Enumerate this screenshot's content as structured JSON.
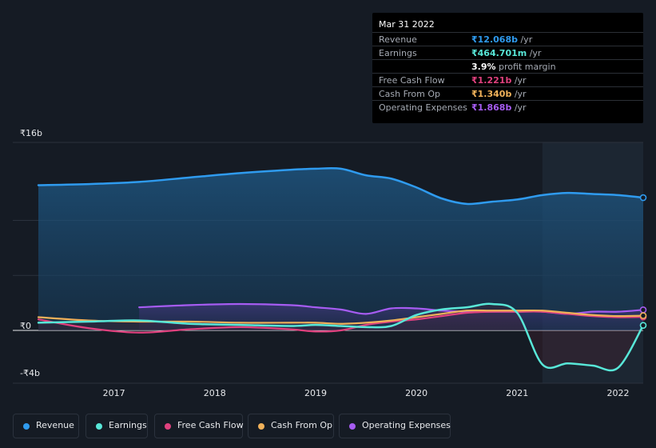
{
  "tooltip": {
    "date": "Mar 31 2022",
    "rows": [
      {
        "label": "Revenue",
        "value": "₹12.068b",
        "unit": " /yr",
        "color": "#2f9bef"
      },
      {
        "label": "Earnings",
        "value": "₹464.701m",
        "unit": " /yr",
        "color": "#58e7d8"
      },
      {
        "label": "",
        "value": "3.9%",
        "unit": " profit margin",
        "color": "#ffffff"
      },
      {
        "label": "Free Cash Flow",
        "value": "₹1.221b",
        "unit": " /yr",
        "color": "#e0417e"
      },
      {
        "label": "Cash From Op",
        "value": "₹1.340b",
        "unit": " /yr",
        "color": "#f0b15a"
      },
      {
        "label": "Operating Expenses",
        "value": "₹1.868b",
        "unit": " /yr",
        "color": "#a65cf2"
      }
    ]
  },
  "legend": [
    {
      "label": "Revenue",
      "color": "#2f9bef"
    },
    {
      "label": "Earnings",
      "color": "#58e7d8"
    },
    {
      "label": "Free Cash Flow",
      "color": "#e0417e"
    },
    {
      "label": "Cash From Op",
      "color": "#f0b15a"
    },
    {
      "label": "Operating Expenses",
      "color": "#a65cf2"
    }
  ],
  "chart_data": {
    "type": "area",
    "y_unit_labels": {
      "top": "₹16b",
      "zero": "₹0",
      "bottom": "-₹4b"
    },
    "ylim": [
      -4,
      16
    ],
    "xlim": [
      2016.25,
      2022.25
    ],
    "x_ticks": [
      "2017",
      "2018",
      "2019",
      "2020",
      "2021",
      "2022"
    ],
    "x_tick_values": [
      2017,
      2018,
      2019,
      2020,
      2021,
      2022
    ],
    "forecast_start": 2021.25,
    "series": [
      {
        "name": "Revenue",
        "color": "#2f9bef",
        "fill": true,
        "x": [
          2016.25,
          2016.75,
          2017.25,
          2017.75,
          2018.25,
          2018.75,
          2019.0,
          2019.25,
          2019.5,
          2019.75,
          2020.0,
          2020.25,
          2020.5,
          2020.75,
          2021.0,
          2021.25,
          2021.5,
          2021.75,
          2022.0,
          2022.25
        ],
        "y": [
          13.2,
          13.3,
          13.5,
          13.9,
          14.3,
          14.6,
          14.7,
          14.7,
          14.1,
          13.8,
          13.0,
          12.0,
          11.5,
          11.7,
          11.9,
          12.3,
          12.5,
          12.4,
          12.3,
          12.07
        ]
      },
      {
        "name": "Earnings",
        "color": "#58e7d8",
        "fill": false,
        "x": [
          2016.25,
          2016.75,
          2017.25,
          2017.75,
          2018.25,
          2018.75,
          2019.0,
          2019.25,
          2019.5,
          2019.75,
          2020.0,
          2020.25,
          2020.5,
          2020.75,
          2021.0,
          2021.25,
          2021.5,
          2021.75,
          2022.0,
          2022.25
        ],
        "y": [
          0.7,
          0.8,
          0.9,
          0.6,
          0.5,
          0.4,
          0.5,
          0.4,
          0.3,
          0.4,
          1.4,
          1.9,
          2.1,
          2.4,
          1.6,
          -3.1,
          -3.0,
          -3.2,
          -3.4,
          0.46
        ]
      },
      {
        "name": "Free Cash Flow",
        "color": "#e0417e",
        "fill": false,
        "x": [
          2016.25,
          2016.75,
          2017.25,
          2017.75,
          2018.25,
          2018.75,
          2019.0,
          2019.25,
          2019.5,
          2019.75,
          2020.0,
          2020.25,
          2020.5,
          2020.75,
          2021.0,
          2021.25,
          2021.5,
          2021.75,
          2022.0,
          2022.25
        ],
        "y": [
          1.0,
          0.2,
          -0.2,
          0.1,
          0.3,
          0.1,
          -0.1,
          0.0,
          0.5,
          0.8,
          1.0,
          1.3,
          1.6,
          1.7,
          1.7,
          1.7,
          1.5,
          1.3,
          1.2,
          1.22
        ]
      },
      {
        "name": "Cash From Op",
        "color": "#f0b15a",
        "fill": false,
        "x": [
          2016.25,
          2016.75,
          2017.25,
          2017.75,
          2018.25,
          2018.75,
          2019.0,
          2019.25,
          2019.5,
          2019.75,
          2020.0,
          2020.25,
          2020.5,
          2020.75,
          2021.0,
          2021.25,
          2021.5,
          2021.75,
          2022.0,
          2022.25
        ],
        "y": [
          1.2,
          0.9,
          0.8,
          0.8,
          0.7,
          0.7,
          0.7,
          0.6,
          0.7,
          0.9,
          1.2,
          1.5,
          1.8,
          1.8,
          1.8,
          1.8,
          1.6,
          1.4,
          1.3,
          1.34
        ]
      },
      {
        "name": "Operating Expenses",
        "color": "#a65cf2",
        "fill": true,
        "x": [
          2017.25,
          2017.75,
          2018.25,
          2018.75,
          2019.0,
          2019.25,
          2019.5,
          2019.75,
          2020.0,
          2020.25,
          2020.5,
          2020.75,
          2021.0,
          2021.25,
          2021.5,
          2021.75,
          2022.0,
          2022.25
        ],
        "y": [
          2.1,
          2.3,
          2.4,
          2.3,
          2.1,
          1.9,
          1.5,
          2.0,
          2.0,
          1.8,
          1.7,
          1.7,
          1.7,
          1.7,
          1.5,
          1.7,
          1.7,
          1.87
        ]
      }
    ]
  }
}
